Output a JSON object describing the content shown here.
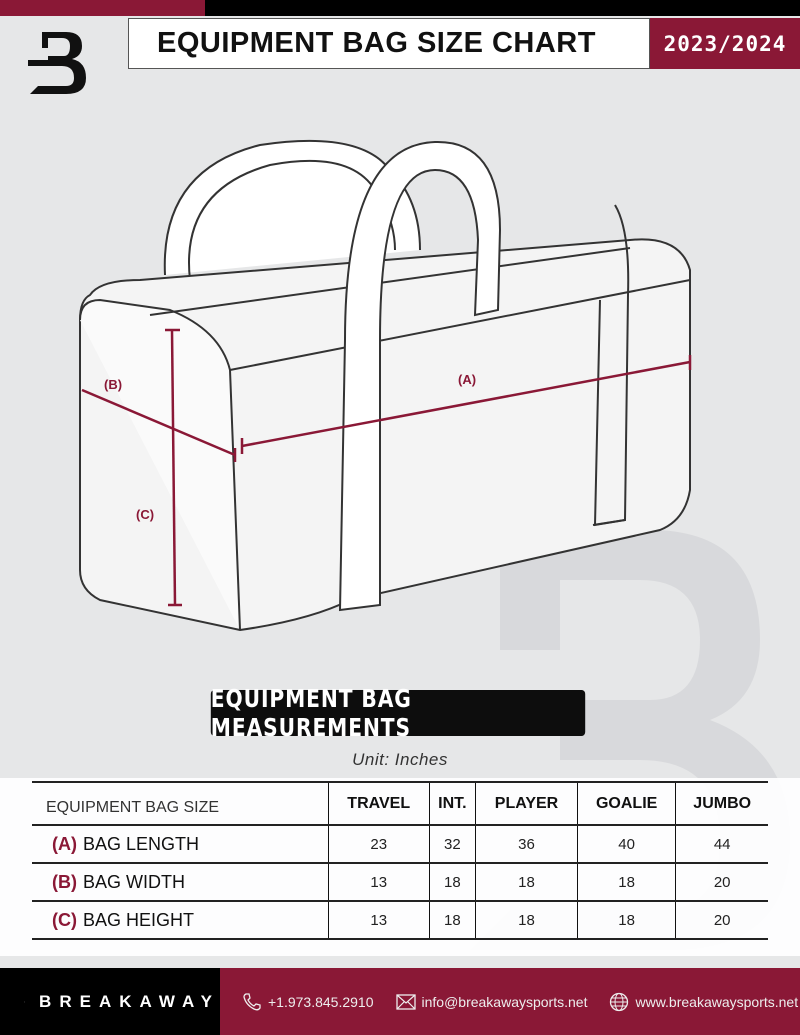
{
  "header": {
    "title": "EQUIPMENT BAG SIZE CHART",
    "season": "2023/2024"
  },
  "diagram": {
    "label_a": "(A)",
    "label_b": "(B)",
    "label_c": "(C)"
  },
  "section_title": "EQUIPMENT BAG MEASUREMENTS",
  "unit": "Unit: Inches",
  "table": {
    "corner": "EQUIPMENT BAG SIZE",
    "columns": [
      "TRAVEL",
      "INT.",
      "PLAYER",
      "GOALIE",
      "JUMBO"
    ],
    "rows": [
      {
        "key": "(A)",
        "label": "BAG LENGTH",
        "values": [
          "23",
          "32",
          "36",
          "40",
          "44"
        ]
      },
      {
        "key": "(B)",
        "label": "BAG WIDTH",
        "values": [
          "13",
          "18",
          "18",
          "18",
          "20"
        ]
      },
      {
        "key": "(C)",
        "label": "BAG HEIGHT",
        "values": [
          "13",
          "18",
          "18",
          "18",
          "20"
        ]
      }
    ]
  },
  "footer": {
    "brand": "BREAKAWAY",
    "phone": "+1.973.845.2910",
    "email": "info@breakawaysports.net",
    "website": "www.breakawaysports.net",
    "icons": [
      "phone-icon",
      "mail-icon",
      "globe-icon"
    ]
  },
  "colors": {
    "accent": "#8a1836",
    "dark": "#000000",
    "background": "#e6e7e8"
  }
}
